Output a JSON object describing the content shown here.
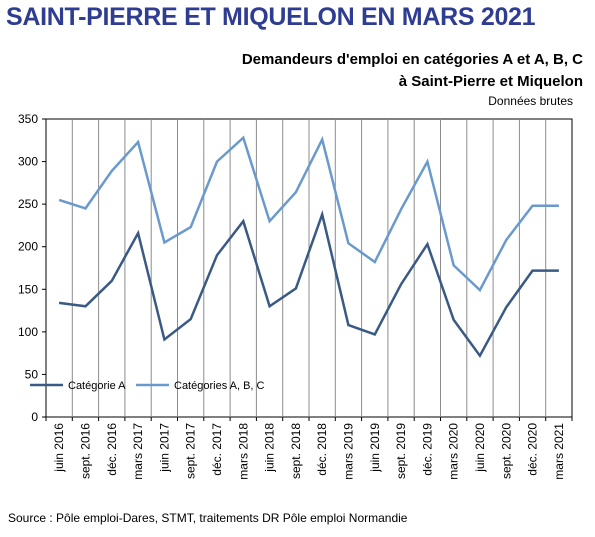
{
  "headline": "SAINT-PIERRE ET MIQUELON EN MARS 2021",
  "source": "Source : Pôle emploi-Dares, STMT, traitements DR Pôle emploi Normandie",
  "chart_data": {
    "type": "line",
    "title_lines": [
      "Demandeurs d'emploi en catégories A et A, B, C",
      "à Saint-Pierre et Miquelon"
    ],
    "subtitle": "Données brutes",
    "xlabel": "",
    "ylabel": "",
    "categories": [
      "juin 2016",
      "sept. 2016",
      "déc. 2016",
      "mars 2017",
      "juin 2017",
      "sept. 2017",
      "déc. 2017",
      "mars 2018",
      "juin 2018",
      "sept. 2018",
      "déc. 2018",
      "mars 2019",
      "juin 2019",
      "sept. 2019",
      "déc. 2019",
      "mars 2020",
      "juin 2020",
      "sept. 2020",
      "déc. 2020",
      "mars 2021"
    ],
    "ylim": [
      0,
      350
    ],
    "yticks": [
      0,
      50,
      100,
      150,
      200,
      250,
      300,
      350
    ],
    "grid": "vertical",
    "legend_position": "left, inside plot",
    "series": [
      {
        "name": "Catégorie A",
        "color": "#3a5a85",
        "values": [
          134,
          130,
          160,
          216,
          91,
          115,
          190,
          230,
          130,
          151,
          238,
          108,
          97,
          156,
          203,
          114,
          72,
          129,
          172,
          172
        ]
      },
      {
        "name": "Catégories A, B, C",
        "color": "#6a9acd",
        "values": [
          255,
          245,
          289,
          323,
          205,
          223,
          300,
          328,
          230,
          264,
          326,
          204,
          182,
          244,
          300,
          178,
          149,
          208,
          248,
          248
        ]
      }
    ]
  }
}
